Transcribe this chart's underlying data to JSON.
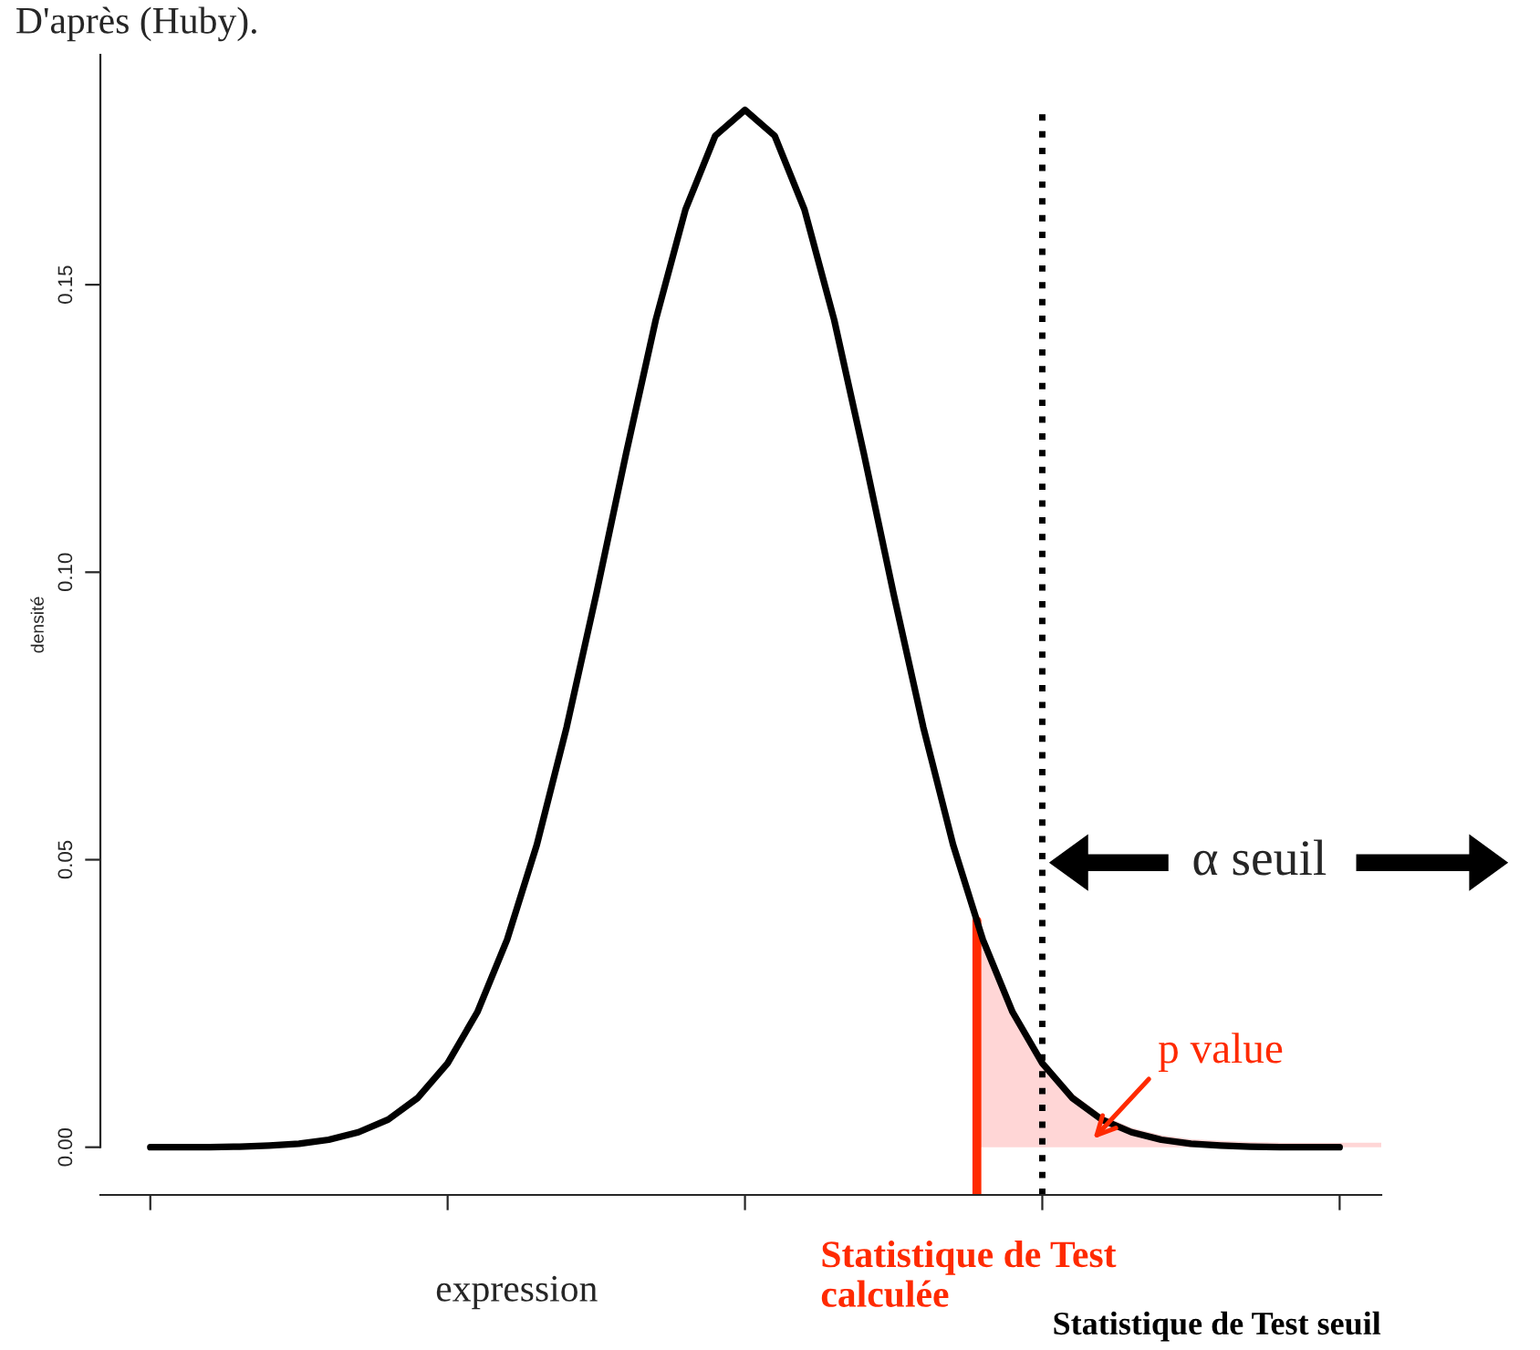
{
  "chart_data": {
    "type": "line",
    "xlabel": "expression",
    "ylabel": "densité",
    "categories": [
      null,
      null,
      null,
      null,
      null,
      null,
      null,
      null,
      null,
      null,
      null,
      null,
      null,
      null,
      null,
      null,
      null,
      null,
      null,
      null,
      null,
      null,
      null,
      null,
      null,
      null,
      null,
      null,
      null,
      null,
      null,
      null,
      null,
      null,
      null,
      null,
      null,
      null,
      null,
      null,
      null
    ],
    "series": [
      {
        "color": "#000000",
        "values": [
          0.0,
          0.0,
          0.0,
          0.0001,
          0.0003,
          0.0006,
          0.0013,
          0.0026,
          0.0048,
          0.0086,
          0.0146,
          0.0235,
          0.0361,
          0.0526,
          0.073,
          0.0962,
          0.1206,
          0.1439,
          0.1631,
          0.1759,
          0.1804,
          0.1759,
          0.1631,
          0.1439,
          0.1206,
          0.0962,
          0.073,
          0.0526,
          0.0361,
          0.0235,
          0.0146,
          0.0086,
          0.0048,
          0.0026,
          0.0013,
          0.0006,
          0.0003,
          0.0001,
          0.0,
          0.0,
          0.0
        ]
      }
    ],
    "ylim": [
      -0.0083,
      0.19
    ],
    "yticks": [
      {
        "value": 0,
        "label": "0.00"
      },
      {
        "value": 0.05,
        "label": "0.05"
      },
      {
        "value": 0.1,
        "label": "0.10"
      },
      {
        "value": 0.15,
        "label": "0.15"
      }
    ],
    "tick_labels": "y",
    "annotations": [
      "D'après (Huby).",
      "α seuil",
      "p value",
      "Statistique de Test\ncalculée",
      "Statistique de Test seuil"
    ],
    "grid": false
  }
}
